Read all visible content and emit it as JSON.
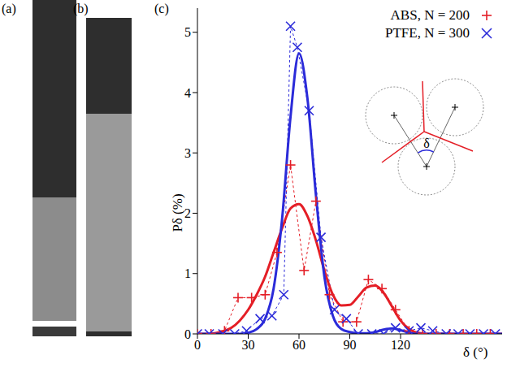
{
  "panel_labels": [
    "(a)",
    "(b)",
    "(c)"
  ],
  "chart_data": {
    "type": "line",
    "xlabel": "δ (°)",
    "ylabel": "Pδ (%)",
    "xlim": [
      0,
      180
    ],
    "xticks": [
      0,
      30,
      60,
      90,
      120
    ],
    "ylim": [
      0,
      5.4
    ],
    "yticks": [
      0,
      1,
      2,
      3,
      4,
      5
    ],
    "legend": "upper right",
    "annotations": [
      {
        "text": "δ"
      }
    ],
    "series": [
      {
        "name": "ABS, N = 200",
        "color": "#e41e26",
        "marker": "plus",
        "line_style": "dashed",
        "x": [
          0,
          8,
          16,
          24,
          32,
          40,
          47,
          55,
          63,
          70,
          78,
          86,
          94,
          101,
          109,
          117,
          125,
          133,
          141,
          149,
          157,
          165,
          173
        ],
        "values": [
          0,
          0,
          0.05,
          0.6,
          0.6,
          0.65,
          1.35,
          2.8,
          1.05,
          2.2,
          0.65,
          0.2,
          0.2,
          0.9,
          0.75,
          0.4,
          0.05,
          0,
          0,
          0,
          0,
          0,
          0
        ]
      },
      {
        "name": "PTFE, N = 300",
        "color": "#2b2bd9",
        "marker": "x",
        "line_style": "dashed",
        "x": [
          0,
          7,
          15,
          22,
          29,
          37,
          44,
          51,
          55,
          59,
          66,
          73,
          81,
          88,
          95,
          103,
          110,
          117,
          125,
          132,
          139,
          147,
          154,
          161,
          169,
          176
        ],
        "values": [
          0,
          0,
          0,
          0,
          0.05,
          0.25,
          0.3,
          0.65,
          5.1,
          4.75,
          3.7,
          1.6,
          0.4,
          0.25,
          0,
          0,
          0,
          0.1,
          0.05,
          0.1,
          0.05,
          0,
          0,
          0,
          0,
          0
        ]
      },
      {
        "color": "#e41e26",
        "line_style": "solid",
        "x": [
          0,
          5,
          10,
          15,
          20,
          25,
          30,
          35,
          40,
          45,
          50,
          55,
          60,
          65,
          70,
          75,
          80,
          85,
          90,
          95,
          100,
          105,
          110,
          115,
          120,
          125,
          130,
          135,
          140,
          150,
          160,
          170,
          180
        ],
        "values": [
          0,
          0,
          0.01,
          0.04,
          0.1,
          0.22,
          0.4,
          0.65,
          0.95,
          1.35,
          1.75,
          2.08,
          2.15,
          1.95,
          1.55,
          1.05,
          0.65,
          0.47,
          0.48,
          0.62,
          0.77,
          0.8,
          0.68,
          0.45,
          0.22,
          0.08,
          0.02,
          0,
          0,
          0,
          0,
          0,
          0
        ]
      },
      {
        "color": "#2b2bd9",
        "line_style": "solid",
        "x": [
          0,
          5,
          10,
          15,
          20,
          25,
          30,
          35,
          40,
          45,
          50,
          55,
          60,
          65,
          70,
          75,
          80,
          85,
          90,
          95,
          100,
          105,
          110,
          115,
          120,
          125,
          130,
          135,
          140,
          150,
          160,
          170,
          180
        ],
        "values": [
          0,
          0,
          0,
          0,
          0,
          0,
          0.02,
          0.08,
          0.25,
          0.75,
          1.9,
          3.6,
          4.65,
          3.9,
          2.3,
          0.95,
          0.3,
          0.08,
          0.03,
          0.01,
          0.01,
          0.03,
          0.07,
          0.09,
          0.06,
          0.02,
          0,
          0,
          0,
          0,
          0,
          0,
          0
        ]
      }
    ]
  }
}
